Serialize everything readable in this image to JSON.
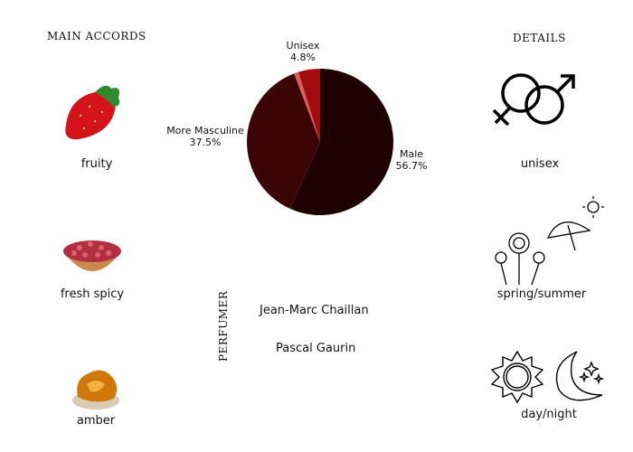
{
  "accords": {
    "heading": "Main Accords",
    "items": [
      {
        "label": "fruity",
        "icon": "strawberry-icon"
      },
      {
        "label": "fresh spicy",
        "icon": "pink-pepper-bowl-icon"
      },
      {
        "label": "amber",
        "icon": "amber-icon"
      }
    ]
  },
  "details": {
    "heading": "Details",
    "items": [
      {
        "label": "unisex",
        "icon": "gender-symbols-icon"
      },
      {
        "label": "spring/summer",
        "icon": "flowers-umbrella-sun-icon"
      },
      {
        "label": "day/night",
        "icon": "sun-moon-icon"
      }
    ]
  },
  "perfumer": {
    "heading": "Perfumer",
    "names": [
      "Jean-Marc Chaillan",
      "Pascal Gaurin"
    ]
  },
  "chart_data": {
    "type": "pie",
    "slices": [
      {
        "label": "Male",
        "value": 56.7,
        "display": "56.7%",
        "color": "#1e0000"
      },
      {
        "label": "More Masculine",
        "value": 37.5,
        "display": "37.5%",
        "color": "#3c0505"
      },
      {
        "label": "",
        "value": 1.0,
        "display": "",
        "color": "#e05a5a"
      },
      {
        "label": "Unisex",
        "value": 4.8,
        "display": "4.8%",
        "color": "#a30c0c"
      }
    ],
    "start": "top",
    "direction": "clockwise"
  }
}
